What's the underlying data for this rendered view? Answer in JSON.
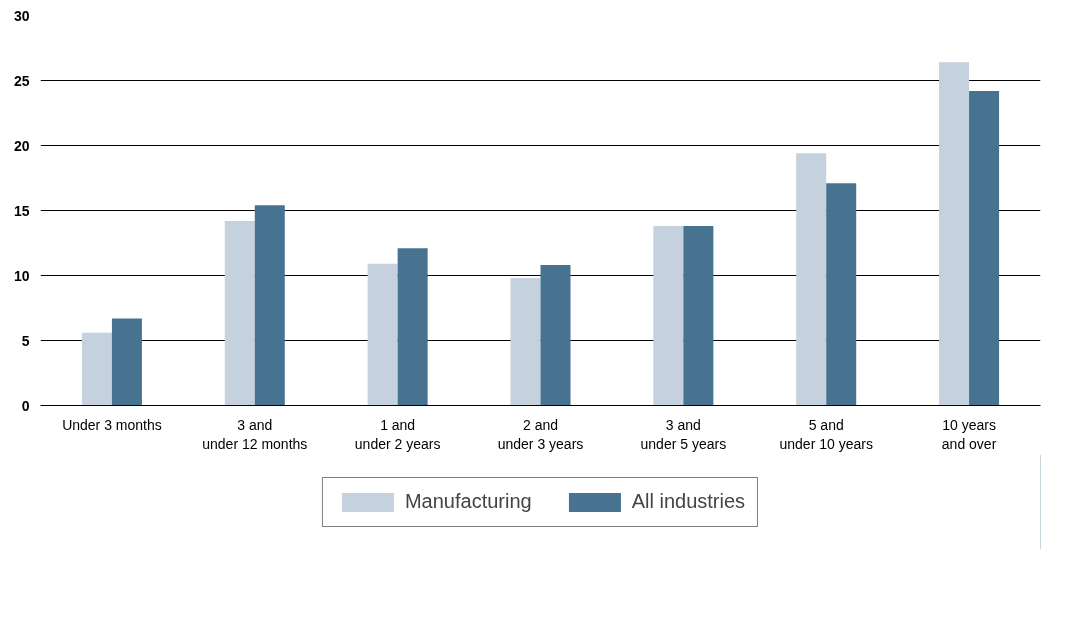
{
  "chart_data": {
    "type": "bar",
    "categories": [
      "Under 3 months",
      "3 and\nunder 12 months",
      "1 and\nunder 2 years",
      "2 and\nunder 3 years",
      "3 and\nunder 5 years",
      "5 and\nunder 10 years",
      "10 years\nand over"
    ],
    "series": [
      {
        "name": "Manufacturing",
        "color": "#c5d1dc",
        "values": [
          5.6,
          14.2,
          10.9,
          9.8,
          13.8,
          19.4,
          26.4
        ]
      },
      {
        "name": "All industries",
        "color": "#477391",
        "values": [
          6.7,
          15.4,
          12.1,
          10.8,
          13.8,
          17.1,
          24.2
        ]
      }
    ],
    "ylim": [
      0,
      30
    ],
    "yticks": [
      0,
      5,
      10,
      15,
      20,
      25,
      30
    ],
    "grid": "y",
    "legend": "bottom"
  }
}
